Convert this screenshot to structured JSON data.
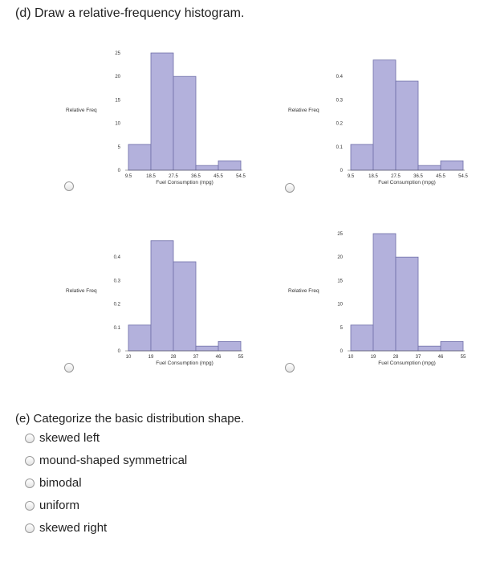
{
  "part_d": {
    "title": "(d) Draw a relative-frequency histogram."
  },
  "part_e": {
    "title": "(e) Categorize the basic distribution shape.",
    "options": [
      "skewed left",
      "mound-shaped symmetrical",
      "bimodal",
      "uniform",
      "skewed right"
    ]
  },
  "colors": {
    "bar_fill": "#b3b1dc",
    "bar_stroke": "#6f6fa8"
  },
  "chart_data": [
    {
      "type": "bar",
      "ylabel": "Relative Freq",
      "xlabel": "Fuel Consumption (mpg)",
      "x_ticks": [
        "9.5",
        "18.5",
        "27.5",
        "36.5",
        "45.5",
        "54.5"
      ],
      "y_ticks": [
        "0",
        "5",
        "10",
        "15",
        "20",
        "25"
      ],
      "ylim": [
        0,
        25
      ],
      "values": [
        5.5,
        25,
        20,
        1,
        2
      ]
    },
    {
      "type": "bar",
      "ylabel": "Relative Freq",
      "xlabel": "Fuel Consumption (mpg)",
      "x_ticks": [
        "9.5",
        "18.5",
        "27.5",
        "36.5",
        "45.5",
        "54.5"
      ],
      "y_ticks": [
        "0",
        "0.1",
        "0.2",
        "0.3",
        "0.4"
      ],
      "ylim": [
        0,
        0.5
      ],
      "values": [
        0.11,
        0.47,
        0.38,
        0.02,
        0.04
      ]
    },
    {
      "type": "bar",
      "ylabel": "Relative Freq",
      "xlabel": "Fuel Consumption (mpg)",
      "x_ticks": [
        "10",
        "19",
        "28",
        "37",
        "46",
        "55"
      ],
      "y_ticks": [
        "0",
        "0.1",
        "0.2",
        "0.3",
        "0.4"
      ],
      "ylim": [
        0,
        0.5
      ],
      "values": [
        0.11,
        0.47,
        0.38,
        0.02,
        0.04
      ]
    },
    {
      "type": "bar",
      "ylabel": "Relative Freq",
      "xlabel": "Fuel Consumption (mpg)",
      "x_ticks": [
        "10",
        "19",
        "28",
        "37",
        "46",
        "55"
      ],
      "y_ticks": [
        "0",
        "5",
        "10",
        "15",
        "20",
        "25"
      ],
      "ylim": [
        0,
        25
      ],
      "values": [
        5.5,
        25,
        20,
        1,
        2
      ]
    }
  ]
}
